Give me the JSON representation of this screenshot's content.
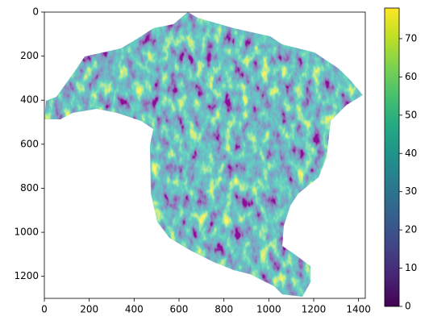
{
  "chart_data": {
    "type": "image",
    "xlim": [
      0,
      1430
    ],
    "ylim": [
      1300,
      0
    ],
    "xticks": [
      0,
      200,
      400,
      600,
      800,
      1000,
      1200,
      1400
    ],
    "yticks": [
      0,
      200,
      400,
      600,
      800,
      1000,
      1200
    ],
    "colormap": "viridis",
    "clim": [
      0,
      78
    ],
    "cticks": [
      0,
      10,
      20,
      30,
      40,
      50,
      60,
      70
    ]
  }
}
